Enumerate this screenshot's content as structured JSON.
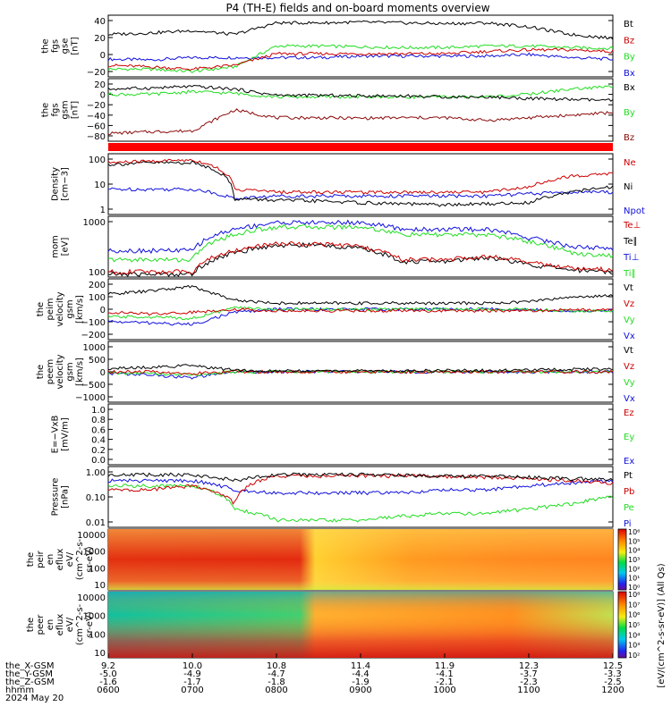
{
  "title": "P4 (TH-E) fields and on-board moments overview",
  "date_label": "2024 May 20",
  "colors": {
    "black": "#000000",
    "red": "#cc0000",
    "darkred": "#8b0a0a",
    "green": "#22dd22",
    "blue": "#1010dd"
  },
  "panels": [
    {
      "ylabel": [
        "the",
        "fgs",
        "gse",
        "[nT]"
      ],
      "yticks": [
        "40",
        "20",
        "0",
        "−20"
      ],
      "legend": [
        {
          "text": "Bt",
          "color": "black"
        },
        {
          "text": "Bz",
          "color": "red"
        },
        {
          "text": "By",
          "color": "green"
        },
        {
          "text": "Bx",
          "color": "blue"
        }
      ]
    },
    {
      "ylabel": [
        "the",
        "fgs",
        "gsm",
        "[nT]"
      ],
      "yticks": [
        "20",
        "0",
        "−20",
        "−40",
        "−60",
        "−80"
      ],
      "legend": [
        {
          "text": "Bx",
          "color": "black"
        },
        {
          "text": "By",
          "color": "green"
        },
        {
          "text": "Bz",
          "color": "darkred"
        }
      ]
    },
    {
      "ylabel": [
        "Density",
        "[cm−3]"
      ],
      "yticks": [
        "100",
        "10",
        "1"
      ],
      "legend": [
        {
          "text": "Ne",
          "color": "red"
        },
        {
          "text": "Ni",
          "color": "black"
        },
        {
          "text": "Npot",
          "color": "blue"
        }
      ]
    },
    {
      "ylabel": [
        "mom",
        "[eV]"
      ],
      "yticks": [
        "1000",
        "100"
      ],
      "legend": [
        {
          "text": "Te⊥",
          "color": "red"
        },
        {
          "text": "Te∥",
          "color": "black"
        },
        {
          "text": "Ti⊥",
          "color": "blue"
        },
        {
          "text": "Ti∥",
          "color": "green"
        }
      ]
    },
    {
      "ylabel": [
        "the",
        "peim",
        "velocity",
        "gsm",
        "[km/s]"
      ],
      "yticks": [
        "200",
        "100",
        "0",
        "−100",
        "−200"
      ],
      "legend": [
        {
          "text": "Vt",
          "color": "black"
        },
        {
          "text": "Vz",
          "color": "red"
        },
        {
          "text": "Vy",
          "color": "green"
        },
        {
          "text": "Vx",
          "color": "blue"
        }
      ]
    },
    {
      "ylabel": [
        "the",
        "peem",
        "velocity",
        "gsm",
        "[km/s]"
      ],
      "yticks": [
        "1000",
        "500",
        "0",
        "−500",
        "−1000"
      ],
      "legend": [
        {
          "text": "Vt",
          "color": "black"
        },
        {
          "text": "Vz",
          "color": "red"
        },
        {
          "text": "Vy",
          "color": "green"
        },
        {
          "text": "Vx",
          "color": "blue"
        }
      ]
    },
    {
      "ylabel": [
        "E=−VxB",
        "[mV/m]"
      ],
      "yticks": [
        "1.0",
        "0.8",
        "0.6",
        "0.4",
        "0.2",
        "0.0"
      ],
      "legend": [
        {
          "text": "Ez",
          "color": "red"
        },
        {
          "text": "Ey",
          "color": "green"
        },
        {
          "text": "Ex",
          "color": "blue"
        }
      ]
    },
    {
      "ylabel": [
        "Pressure",
        "[nPa]"
      ],
      "yticks": [
        "1.00",
        "0.10",
        "0.01"
      ],
      "legend": [
        {
          "text": "Pt",
          "color": "black"
        },
        {
          "text": "Pb",
          "color": "red"
        },
        {
          "text": "Pe",
          "color": "green"
        },
        {
          "text": "Pi",
          "color": "blue"
        }
      ]
    },
    {
      "ylabel": [
        "the",
        "peir",
        "en",
        "eflux",
        "eV/",
        "(cm^2-s-",
        "sr-eV)"
      ],
      "yticks": [
        "10000",
        "1000",
        "100",
        "10"
      ]
    },
    {
      "ylabel": [
        "the",
        "peer",
        "en",
        "eflux",
        "eV/",
        "(cm^2-s-",
        "sr-eV)"
      ],
      "yticks": [
        "10000",
        "1000",
        "100",
        "10"
      ]
    }
  ],
  "colorbar1": {
    "ticks": [
      "10⁶",
      "10⁵",
      "10⁴",
      "10³",
      "10²",
      "10¹",
      "10⁰"
    ]
  },
  "colorbar2": {
    "ticks": [
      "10⁸",
      "10⁷",
      "10⁶",
      "10⁵",
      "10⁴",
      "10³",
      "10²"
    ]
  },
  "colorbar_label": "[eV/(cm^2-s-sr-eV)] (All Qs)",
  "xaxis": {
    "row_labels": [
      "the_X-GSM",
      "the_Y-GSM",
      "the_Z-GSM",
      "hhmm"
    ],
    "cols": [
      [
        "9.2",
        "-5.0",
        "-1.6",
        "0600"
      ],
      [
        "10.0",
        "-4.9",
        "-1.7",
        "0700"
      ],
      [
        "10.8",
        "-4.7",
        "-1.8",
        "0800"
      ],
      [
        "11.4",
        "-4.4",
        "-1.9",
        "0900"
      ],
      [
        "11.9",
        "-4.1",
        "-2.1",
        "1000"
      ],
      [
        "12.3",
        "-3.7",
        "-2.3",
        "1100"
      ],
      [
        "12.5",
        "-3.3",
        "-2.5",
        "1200"
      ]
    ]
  },
  "chart_data": {
    "type": "line",
    "title": "P4 (TH-E) fields and on-board moments overview",
    "x": [
      "0600",
      "0630",
      "0700",
      "0730",
      "0800",
      "0830",
      "0900",
      "0930",
      "1000",
      "1030",
      "1100",
      "1130",
      "1200"
    ],
    "xlabel": "hhmm",
    "date": "2024 May 20",
    "panels": [
      {
        "ylabel": "the fgs gse [nT]",
        "ylim": [
          -25,
          55
        ],
        "series": [
          {
            "name": "Bt",
            "values": [
              30,
              32,
              35,
              30,
              45,
              45,
              46,
              45,
              44,
              45,
              40,
              30,
              25
            ]
          },
          {
            "name": "Bz",
            "values": [
              -10,
              -12,
              -15,
              -10,
              5,
              5,
              5,
              5,
              5,
              8,
              10,
              10,
              8
            ]
          },
          {
            "name": "By",
            "values": [
              -15,
              -15,
              -18,
              -12,
              15,
              15,
              14,
              13,
              13,
              15,
              15,
              13,
              12
            ]
          },
          {
            "name": "Bx",
            "values": [
              -2,
              -3,
              0,
              0,
              0,
              0,
              2,
              2,
              2,
              2,
              4,
              0,
              -2
            ]
          }
        ]
      },
      {
        "ylabel": "the fgs gsm [nT]",
        "ylim": [
          -90,
          30
        ],
        "series": [
          {
            "name": "Bx",
            "values": [
              10,
              12,
              15,
              10,
              -2,
              -2,
              -3,
              -3,
              -5,
              -5,
              -8,
              -10,
              -12
            ]
          },
          {
            "name": "By",
            "values": [
              0,
              0,
              5,
              2,
              -5,
              -5,
              -5,
              -5,
              -5,
              -5,
              0,
              10,
              15
            ]
          },
          {
            "name": "Bz",
            "values": [
              -75,
              -72,
              -70,
              -30,
              -45,
              -45,
              -46,
              -45,
              -45,
              -50,
              -45,
              -40,
              -35
            ]
          }
        ]
      },
      {
        "ylabel": "Density [cm-3]",
        "ylim": [
          0.3,
          150
        ],
        "scale": "log",
        "series": [
          {
            "name": "Ne",
            "values": [
              60,
              70,
              80,
              4,
              3,
              3,
              3,
              3,
              3,
              3,
              5,
              15,
              20
            ]
          },
          {
            "name": "Ni",
            "values": [
              50,
              60,
              60,
              1.5,
              1.3,
              1.2,
              1,
              0.9,
              0.8,
              0.9,
              1,
              3,
              5
            ]
          },
          {
            "name": "Npot",
            "values": [
              4,
              4,
              4,
              1.5,
              2,
              2,
              2,
              2,
              2,
              2,
              2.5,
              3,
              3
            ]
          }
        ]
      },
      {
        "ylabel": "mom [eV]",
        "ylim": [
          40,
          4000
        ],
        "scale": "log",
        "series": [
          {
            "name": "Te⊥",
            "values": [
              60,
              60,
              60,
              300,
              500,
              500,
              400,
              150,
              150,
              200,
              120,
              80,
              70
            ]
          },
          {
            "name": "Te∥",
            "values": [
              50,
              50,
              50,
              250,
              450,
              450,
              350,
              130,
              130,
              180,
              100,
              70,
              60
            ]
          },
          {
            "name": "Ti⊥",
            "values": [
              300,
              300,
              300,
              1500,
              2500,
              2500,
              2500,
              1500,
              1500,
              1500,
              800,
              400,
              350
            ]
          },
          {
            "name": "Ti∥",
            "values": [
              150,
              150,
              150,
              1000,
              1800,
              1800,
              1800,
              1000,
              1000,
              1000,
              600,
              250,
              200
            ]
          }
        ]
      },
      {
        "ylabel": "the peim velocity gsm [km/s]",
        "ylim": [
          -200,
          200
        ],
        "series": [
          {
            "name": "Vt",
            "values": [
              100,
              120,
              150,
              60,
              40,
              40,
              40,
              40,
              40,
              40,
              50,
              80,
              90
            ]
          },
          {
            "name": "Vz",
            "values": [
              -20,
              -30,
              -20,
              0,
              -10,
              -10,
              -10,
              -10,
              -10,
              -10,
              -10,
              -5,
              0
            ]
          },
          {
            "name": "Vy",
            "values": [
              -50,
              -50,
              -60,
              10,
              0,
              0,
              0,
              0,
              0,
              0,
              0,
              -10,
              -10
            ]
          },
          {
            "name": "Vx",
            "values": [
              -80,
              -90,
              -100,
              -20,
              0,
              0,
              0,
              0,
              0,
              0,
              0,
              -10,
              -10
            ]
          }
        ]
      },
      {
        "ylabel": "the peem velocity gsm [km/s]",
        "ylim": [
          -1000,
          1000
        ],
        "series": [
          {
            "name": "Vt",
            "values": [
              100,
              150,
              200,
              50,
              30,
              30,
              30,
              30,
              40,
              40,
              50,
              80,
              90
            ]
          },
          {
            "name": "Vz",
            "values": [
              0,
              0,
              -50,
              0,
              0,
              0,
              0,
              0,
              0,
              0,
              0,
              0,
              0
            ]
          },
          {
            "name": "Vy",
            "values": [
              -50,
              -50,
              -100,
              0,
              0,
              0,
              0,
              0,
              0,
              0,
              0,
              0,
              0
            ]
          },
          {
            "name": "Vx",
            "values": [
              -50,
              -100,
              -200,
              0,
              0,
              0,
              0,
              0,
              0,
              0,
              0,
              0,
              0
            ]
          }
        ]
      },
      {
        "ylabel": "E=-VxB [mV/m]",
        "ylim": [
          0,
          1.0
        ],
        "series": [
          {
            "name": "Ez",
            "values": []
          },
          {
            "name": "Ey",
            "values": []
          },
          {
            "name": "Ex",
            "values": []
          }
        ]
      },
      {
        "ylabel": "Pressure [nPa]",
        "ylim": [
          0.005,
          2
        ],
        "scale": "log",
        "series": [
          {
            "name": "Pt",
            "values": [
              0.9,
              0.9,
              0.9,
              0.5,
              0.9,
              0.9,
              0.9,
              0.85,
              0.8,
              0.8,
              0.7,
              0.6,
              0.6
            ]
          },
          {
            "name": "Pb",
            "values": [
              0.2,
              0.2,
              0.3,
              0.05,
              0.8,
              0.8,
              0.8,
              0.8,
              0.75,
              0.7,
              0.6,
              0.5,
              0.4
            ]
          },
          {
            "name": "Pe",
            "values": [
              0.3,
              0.3,
              0.3,
              0.03,
              0.01,
              0.01,
              0.01,
              0.015,
              0.02,
              0.02,
              0.03,
              0.05,
              0.1
            ]
          },
          {
            "name": "Pi",
            "values": [
              0.5,
              0.5,
              0.5,
              0.2,
              0.15,
              0.15,
              0.15,
              0.15,
              0.2,
              0.2,
              0.3,
              0.4,
              0.5
            ]
          }
        ]
      }
    ],
    "spectrograms": [
      {
        "ylabel": "the peir en eflux",
        "ylim": [
          5,
          20000
        ],
        "scale": "log",
        "clim": [
          "10⁰",
          "10⁶"
        ]
      },
      {
        "ylabel": "the peer en eflux",
        "ylim": [
          5,
          20000
        ],
        "scale": "log",
        "clim": [
          "10²",
          "10⁸"
        ]
      }
    ],
    "colorbar_label": "[eV/(cm^2-s-sr-eV)] (All Qs)"
  }
}
